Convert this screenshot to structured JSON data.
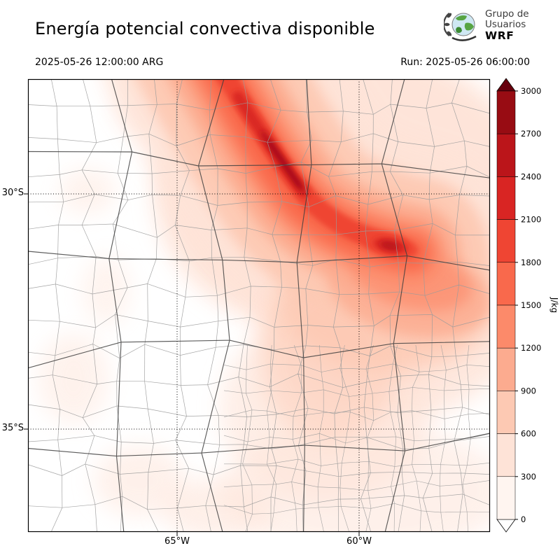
{
  "header": {
    "title": "Energía potencial convectiva disponible",
    "valid_time": "2025-05-26 12:00:00 ARG",
    "run_label": "Run: 2025-05-26 06:00:00",
    "logo": {
      "icon": "globe-icon",
      "line1": "Grupo de",
      "line2": "Usuarios",
      "line3": "WRF"
    }
  },
  "map": {
    "lat_ticks": [
      "30°S",
      "35°S"
    ],
    "lon_ticks": [
      "65°W",
      "60°W"
    ]
  },
  "colorbar": {
    "unit": "J/kg",
    "ticks": [
      "3000",
      "2700",
      "2400",
      "2100",
      "1800",
      "1500",
      "1200",
      "900",
      "600",
      "300",
      "0"
    ],
    "colors": [
      "#fff5f0",
      "#fee3d7",
      "#fdc9b3",
      "#fcab8f",
      "#fc8a6a",
      "#f9694c",
      "#ef4533",
      "#d92523",
      "#bb151a",
      "#980c13"
    ],
    "extend_over_color": "#67000d",
    "extend_under_color": "#ffffff"
  },
  "chart_data": {
    "type": "heatmap",
    "title": "Energía potencial convectiva disponible",
    "units": "J/kg",
    "levels": [
      0,
      300,
      600,
      900,
      1200,
      1500,
      1800,
      2100,
      2400,
      2700,
      3000
    ],
    "colormap": "Reds",
    "lat_gridlines": [
      "30°S",
      "35°S"
    ],
    "lon_gridlines": [
      "65°W",
      "60°W"
    ],
    "description": "CAPE field over central-northern Argentina; maximum band ~2400-3000 J/kg oriented NW-SE across the north-center, secondary maximum near 60°W 31.5°S, near-zero values in the west and far south"
  }
}
